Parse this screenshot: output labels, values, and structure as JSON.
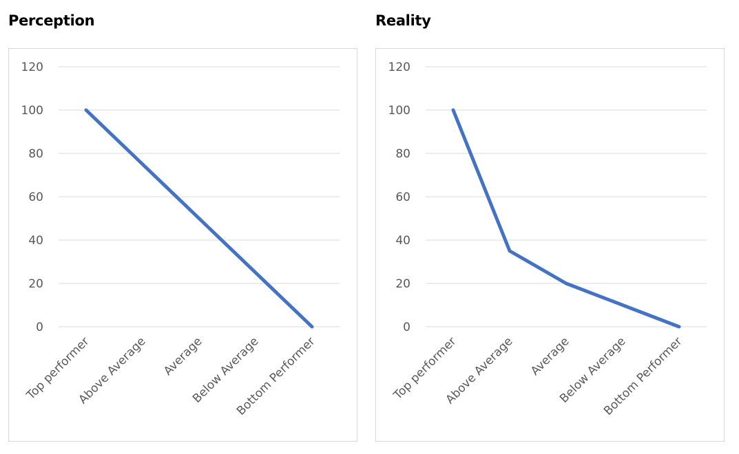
{
  "chart_data": [
    {
      "type": "line",
      "title": "Perception",
      "categories": [
        "Top performer",
        "Above Average",
        "Average",
        "Below Average",
        "Bottom Performer"
      ],
      "series": [
        {
          "values": [
            100,
            75,
            50,
            25,
            0
          ]
        }
      ],
      "yticks": [
        0,
        20,
        40,
        60,
        80,
        100,
        120
      ],
      "ylim": [
        0,
        120
      ],
      "grid": true,
      "color": "#4472c4"
    },
    {
      "type": "line",
      "title": "Reality",
      "categories": [
        "Top performer",
        "Above Average",
        "Average",
        "Below Average",
        "Bottom Performer"
      ],
      "series": [
        {
          "values": [
            100,
            35,
            20,
            10,
            0
          ]
        }
      ],
      "yticks": [
        0,
        20,
        40,
        60,
        80,
        100,
        120
      ],
      "ylim": [
        0,
        120
      ],
      "grid": true,
      "color": "#4472c4"
    }
  ]
}
